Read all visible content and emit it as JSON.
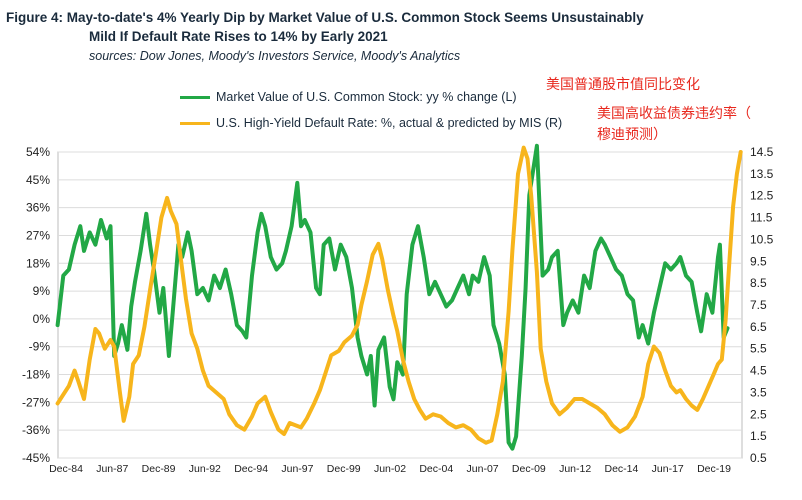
{
  "header": {
    "title_line1": "Figure 4: May-to-date's 4% Yearly Dip by Market Value of U.S. Common Stock Seems Unsustainably",
    "title_line2": "Mild If Default Rate Rises to 14% by Early 2021",
    "source": "sources: Dow Jones, Moody's Investors Service, Moody's Analytics"
  },
  "annotations": {
    "stock_cn": "美国普通股市值同比变化",
    "default_cn_line1": "美国高收益债券违约率（",
    "default_cn_line2": "穆迪预测）"
  },
  "colors": {
    "stock": "#22a846",
    "default": "#f7b51c",
    "annotation": "#e8281e"
  },
  "chart_data": {
    "type": "line",
    "x_tick_labels": [
      "Dec-84",
      "Jun-87",
      "Dec-89",
      "Jun-92",
      "Dec-94",
      "Jun-97",
      "Dec-99",
      "Jun-02",
      "Dec-04",
      "Jun-07",
      "Dec-09",
      "Jun-12",
      "Dec-14",
      "Jun-17",
      "Dec-19"
    ],
    "x_range": [
      1984.92,
      2021.17
    ],
    "y_left": {
      "ticks": [
        "54%",
        "45%",
        "36%",
        "27%",
        "18%",
        "9%",
        "0%",
        "-9%",
        "-18%",
        "-27%",
        "-36%",
        "-45%"
      ],
      "ylim": [
        -45,
        54
      ]
    },
    "y_right": {
      "ticks": [
        "14.5",
        "13.5",
        "12.5",
        "11.5",
        "10.5",
        "9.5",
        "8.5",
        "7.5",
        "6.5",
        "5.5",
        "4.5",
        "3.5",
        "2.5",
        "1.5",
        "0.5"
      ],
      "ylim": [
        0.5,
        14.5
      ]
    },
    "grid": true,
    "series": [
      {
        "name": "Market Value of U.S. Common Stock: yy % change (L)",
        "axis": "left",
        "points": [
          [
            1984.9,
            -2
          ],
          [
            1985.2,
            14
          ],
          [
            1985.5,
            16
          ],
          [
            1985.8,
            24
          ],
          [
            1986.1,
            30
          ],
          [
            1986.3,
            22
          ],
          [
            1986.6,
            28
          ],
          [
            1986.9,
            24
          ],
          [
            1987.2,
            32
          ],
          [
            1987.5,
            26
          ],
          [
            1987.7,
            30
          ],
          [
            1987.9,
            -12
          ],
          [
            1988.1,
            -8
          ],
          [
            1988.3,
            -2
          ],
          [
            1988.6,
            -10
          ],
          [
            1988.8,
            4
          ],
          [
            1989.0,
            12
          ],
          [
            1989.3,
            22
          ],
          [
            1989.6,
            34
          ],
          [
            1989.8,
            24
          ],
          [
            1990.0,
            16
          ],
          [
            1990.3,
            2
          ],
          [
            1990.5,
            10
          ],
          [
            1990.8,
            -12
          ],
          [
            1991.0,
            2
          ],
          [
            1991.3,
            24
          ],
          [
            1991.5,
            20
          ],
          [
            1991.8,
            28
          ],
          [
            1992.0,
            22
          ],
          [
            1992.3,
            8
          ],
          [
            1992.6,
            10
          ],
          [
            1992.9,
            6
          ],
          [
            1993.2,
            14
          ],
          [
            1993.5,
            10
          ],
          [
            1993.8,
            16
          ],
          [
            1994.1,
            8
          ],
          [
            1994.4,
            -2
          ],
          [
            1994.7,
            -4
          ],
          [
            1994.9,
            -6
          ],
          [
            1995.2,
            14
          ],
          [
            1995.5,
            28
          ],
          [
            1995.7,
            34
          ],
          [
            1995.9,
            30
          ],
          [
            1996.2,
            20
          ],
          [
            1996.5,
            16
          ],
          [
            1996.8,
            18
          ],
          [
            1997.0,
            22
          ],
          [
            1997.3,
            30
          ],
          [
            1997.6,
            44
          ],
          [
            1997.8,
            30
          ],
          [
            1998.0,
            32
          ],
          [
            1998.3,
            28
          ],
          [
            1998.6,
            10
          ],
          [
            1998.8,
            8
          ],
          [
            1999.0,
            24
          ],
          [
            1999.3,
            26
          ],
          [
            1999.6,
            16
          ],
          [
            1999.9,
            24
          ],
          [
            2000.2,
            20
          ],
          [
            2000.5,
            10
          ],
          [
            2000.8,
            -6
          ],
          [
            2001.0,
            -12
          ],
          [
            2001.3,
            -18
          ],
          [
            2001.5,
            -12
          ],
          [
            2001.7,
            -28
          ],
          [
            2001.9,
            -10
          ],
          [
            2002.2,
            -6
          ],
          [
            2002.5,
            -22
          ],
          [
            2002.7,
            -26
          ],
          [
            2002.9,
            -14
          ],
          [
            2003.2,
            -18
          ],
          [
            2003.4,
            8
          ],
          [
            2003.7,
            24
          ],
          [
            2004.0,
            30
          ],
          [
            2004.3,
            20
          ],
          [
            2004.6,
            8
          ],
          [
            2004.9,
            12
          ],
          [
            2005.2,
            8
          ],
          [
            2005.5,
            4
          ],
          [
            2005.8,
            6
          ],
          [
            2006.1,
            10
          ],
          [
            2006.4,
            14
          ],
          [
            2006.7,
            8
          ],
          [
            2006.9,
            14
          ],
          [
            2007.2,
            12
          ],
          [
            2007.5,
            20
          ],
          [
            2007.8,
            14
          ],
          [
            2008.0,
            -2
          ],
          [
            2008.3,
            -8
          ],
          [
            2008.6,
            -18
          ],
          [
            2008.8,
            -40
          ],
          [
            2009.0,
            -42
          ],
          [
            2009.2,
            -38
          ],
          [
            2009.5,
            -12
          ],
          [
            2009.7,
            10
          ],
          [
            2009.9,
            40
          ],
          [
            2010.1,
            48
          ],
          [
            2010.3,
            56
          ],
          [
            2010.6,
            14
          ],
          [
            2010.9,
            16
          ],
          [
            2011.1,
            20
          ],
          [
            2011.4,
            22
          ],
          [
            2011.7,
            -2
          ],
          [
            2011.9,
            2
          ],
          [
            2012.2,
            6
          ],
          [
            2012.5,
            2
          ],
          [
            2012.8,
            14
          ],
          [
            2013.1,
            10
          ],
          [
            2013.4,
            22
          ],
          [
            2013.7,
            26
          ],
          [
            2013.9,
            24
          ],
          [
            2014.2,
            20
          ],
          [
            2014.5,
            16
          ],
          [
            2014.8,
            14
          ],
          [
            2015.1,
            8
          ],
          [
            2015.4,
            6
          ],
          [
            2015.7,
            -6
          ],
          [
            2015.9,
            -2
          ],
          [
            2016.2,
            -8
          ],
          [
            2016.5,
            2
          ],
          [
            2016.8,
            10
          ],
          [
            2017.1,
            18
          ],
          [
            2017.4,
            16
          ],
          [
            2017.7,
            18
          ],
          [
            2017.9,
            20
          ],
          [
            2018.2,
            14
          ],
          [
            2018.5,
            12
          ],
          [
            2018.8,
            2
          ],
          [
            2019.0,
            -4
          ],
          [
            2019.3,
            8
          ],
          [
            2019.6,
            2
          ],
          [
            2019.9,
            20
          ],
          [
            2020.0,
            24
          ],
          [
            2020.2,
            -6
          ],
          [
            2020.4,
            -3
          ]
        ]
      },
      {
        "name": "U.S. High-Yield Default Rate: %, actual & predicted by MIS (R)",
        "axis": "right",
        "points": [
          [
            1984.9,
            3.0
          ],
          [
            1985.2,
            3.4
          ],
          [
            1985.5,
            3.8
          ],
          [
            1985.8,
            4.5
          ],
          [
            1986.0,
            4.0
          ],
          [
            1986.3,
            3.2
          ],
          [
            1986.6,
            5.0
          ],
          [
            1986.9,
            6.4
          ],
          [
            1987.1,
            6.2
          ],
          [
            1987.4,
            5.5
          ],
          [
            1987.7,
            5.9
          ],
          [
            1987.9,
            5.6
          ],
          [
            1988.2,
            3.5
          ],
          [
            1988.4,
            2.2
          ],
          [
            1988.7,
            3.3
          ],
          [
            1988.9,
            4.8
          ],
          [
            1989.2,
            5.2
          ],
          [
            1989.5,
            6.5
          ],
          [
            1989.8,
            8.2
          ],
          [
            1990.1,
            9.8
          ],
          [
            1990.4,
            11.5
          ],
          [
            1990.7,
            12.4
          ],
          [
            1990.9,
            11.8
          ],
          [
            1991.2,
            11.2
          ],
          [
            1991.4,
            9.8
          ],
          [
            1991.7,
            7.8
          ],
          [
            1992.0,
            6.2
          ],
          [
            1992.3,
            5.5
          ],
          [
            1992.6,
            4.5
          ],
          [
            1992.9,
            3.8
          ],
          [
            1993.3,
            3.5
          ],
          [
            1993.7,
            3.2
          ],
          [
            1994.0,
            2.5
          ],
          [
            1994.4,
            2.0
          ],
          [
            1994.8,
            1.8
          ],
          [
            1995.2,
            2.4
          ],
          [
            1995.5,
            3.0
          ],
          [
            1995.9,
            3.3
          ],
          [
            1996.2,
            2.6
          ],
          [
            1996.6,
            1.8
          ],
          [
            1996.9,
            1.6
          ],
          [
            1997.2,
            2.1
          ],
          [
            1997.5,
            2.0
          ],
          [
            1997.8,
            1.9
          ],
          [
            1998.1,
            2.3
          ],
          [
            1998.5,
            3.0
          ],
          [
            1998.8,
            3.6
          ],
          [
            1999.1,
            4.4
          ],
          [
            1999.4,
            5.2
          ],
          [
            1999.8,
            5.4
          ],
          [
            2000.1,
            5.8
          ],
          [
            2000.5,
            6.1
          ],
          [
            2000.8,
            6.6
          ],
          [
            2001.0,
            7.5
          ],
          [
            2001.3,
            8.6
          ],
          [
            2001.6,
            9.8
          ],
          [
            2001.9,
            10.3
          ],
          [
            2002.1,
            9.6
          ],
          [
            2002.4,
            8.2
          ],
          [
            2002.7,
            7.0
          ],
          [
            2002.9,
            6.3
          ],
          [
            2003.2,
            5.0
          ],
          [
            2003.5,
            4.0
          ],
          [
            2003.8,
            3.2
          ],
          [
            2004.1,
            2.7
          ],
          [
            2004.4,
            2.3
          ],
          [
            2004.8,
            2.5
          ],
          [
            2005.2,
            2.4
          ],
          [
            2005.6,
            2.1
          ],
          [
            2006.0,
            1.9
          ],
          [
            2006.4,
            2.0
          ],
          [
            2006.8,
            1.8
          ],
          [
            2007.2,
            1.4
          ],
          [
            2007.6,
            1.2
          ],
          [
            2007.9,
            1.3
          ],
          [
            2008.2,
            2.5
          ],
          [
            2008.5,
            4.0
          ],
          [
            2008.8,
            7.2
          ],
          [
            2009.0,
            10.0
          ],
          [
            2009.3,
            13.5
          ],
          [
            2009.6,
            14.7
          ],
          [
            2009.8,
            14.2
          ],
          [
            2010.0,
            12.5
          ],
          [
            2010.3,
            9.0
          ],
          [
            2010.5,
            5.5
          ],
          [
            2010.8,
            4.0
          ],
          [
            2011.1,
            3.0
          ],
          [
            2011.5,
            2.5
          ],
          [
            2011.9,
            2.8
          ],
          [
            2012.3,
            3.2
          ],
          [
            2012.7,
            3.2
          ],
          [
            2013.1,
            3.0
          ],
          [
            2013.5,
            2.8
          ],
          [
            2013.9,
            2.5
          ],
          [
            2014.3,
            2.0
          ],
          [
            2014.7,
            1.7
          ],
          [
            2015.1,
            1.9
          ],
          [
            2015.5,
            2.4
          ],
          [
            2015.9,
            3.3
          ],
          [
            2016.2,
            4.8
          ],
          [
            2016.5,
            5.6
          ],
          [
            2016.8,
            5.3
          ],
          [
            2017.1,
            4.5
          ],
          [
            2017.4,
            3.8
          ],
          [
            2017.7,
            3.5
          ],
          [
            2017.9,
            3.6
          ],
          [
            2018.2,
            3.2
          ],
          [
            2018.5,
            2.9
          ],
          [
            2018.8,
            2.7
          ],
          [
            2019.1,
            3.2
          ],
          [
            2019.4,
            3.8
          ],
          [
            2019.7,
            4.4
          ],
          [
            2019.9,
            4.8
          ],
          [
            2020.1,
            5.0
          ],
          [
            2020.3,
            6.8
          ],
          [
            2020.5,
            9.5
          ],
          [
            2020.7,
            12.0
          ],
          [
            2020.9,
            13.5
          ],
          [
            2021.1,
            14.5
          ]
        ]
      }
    ]
  }
}
